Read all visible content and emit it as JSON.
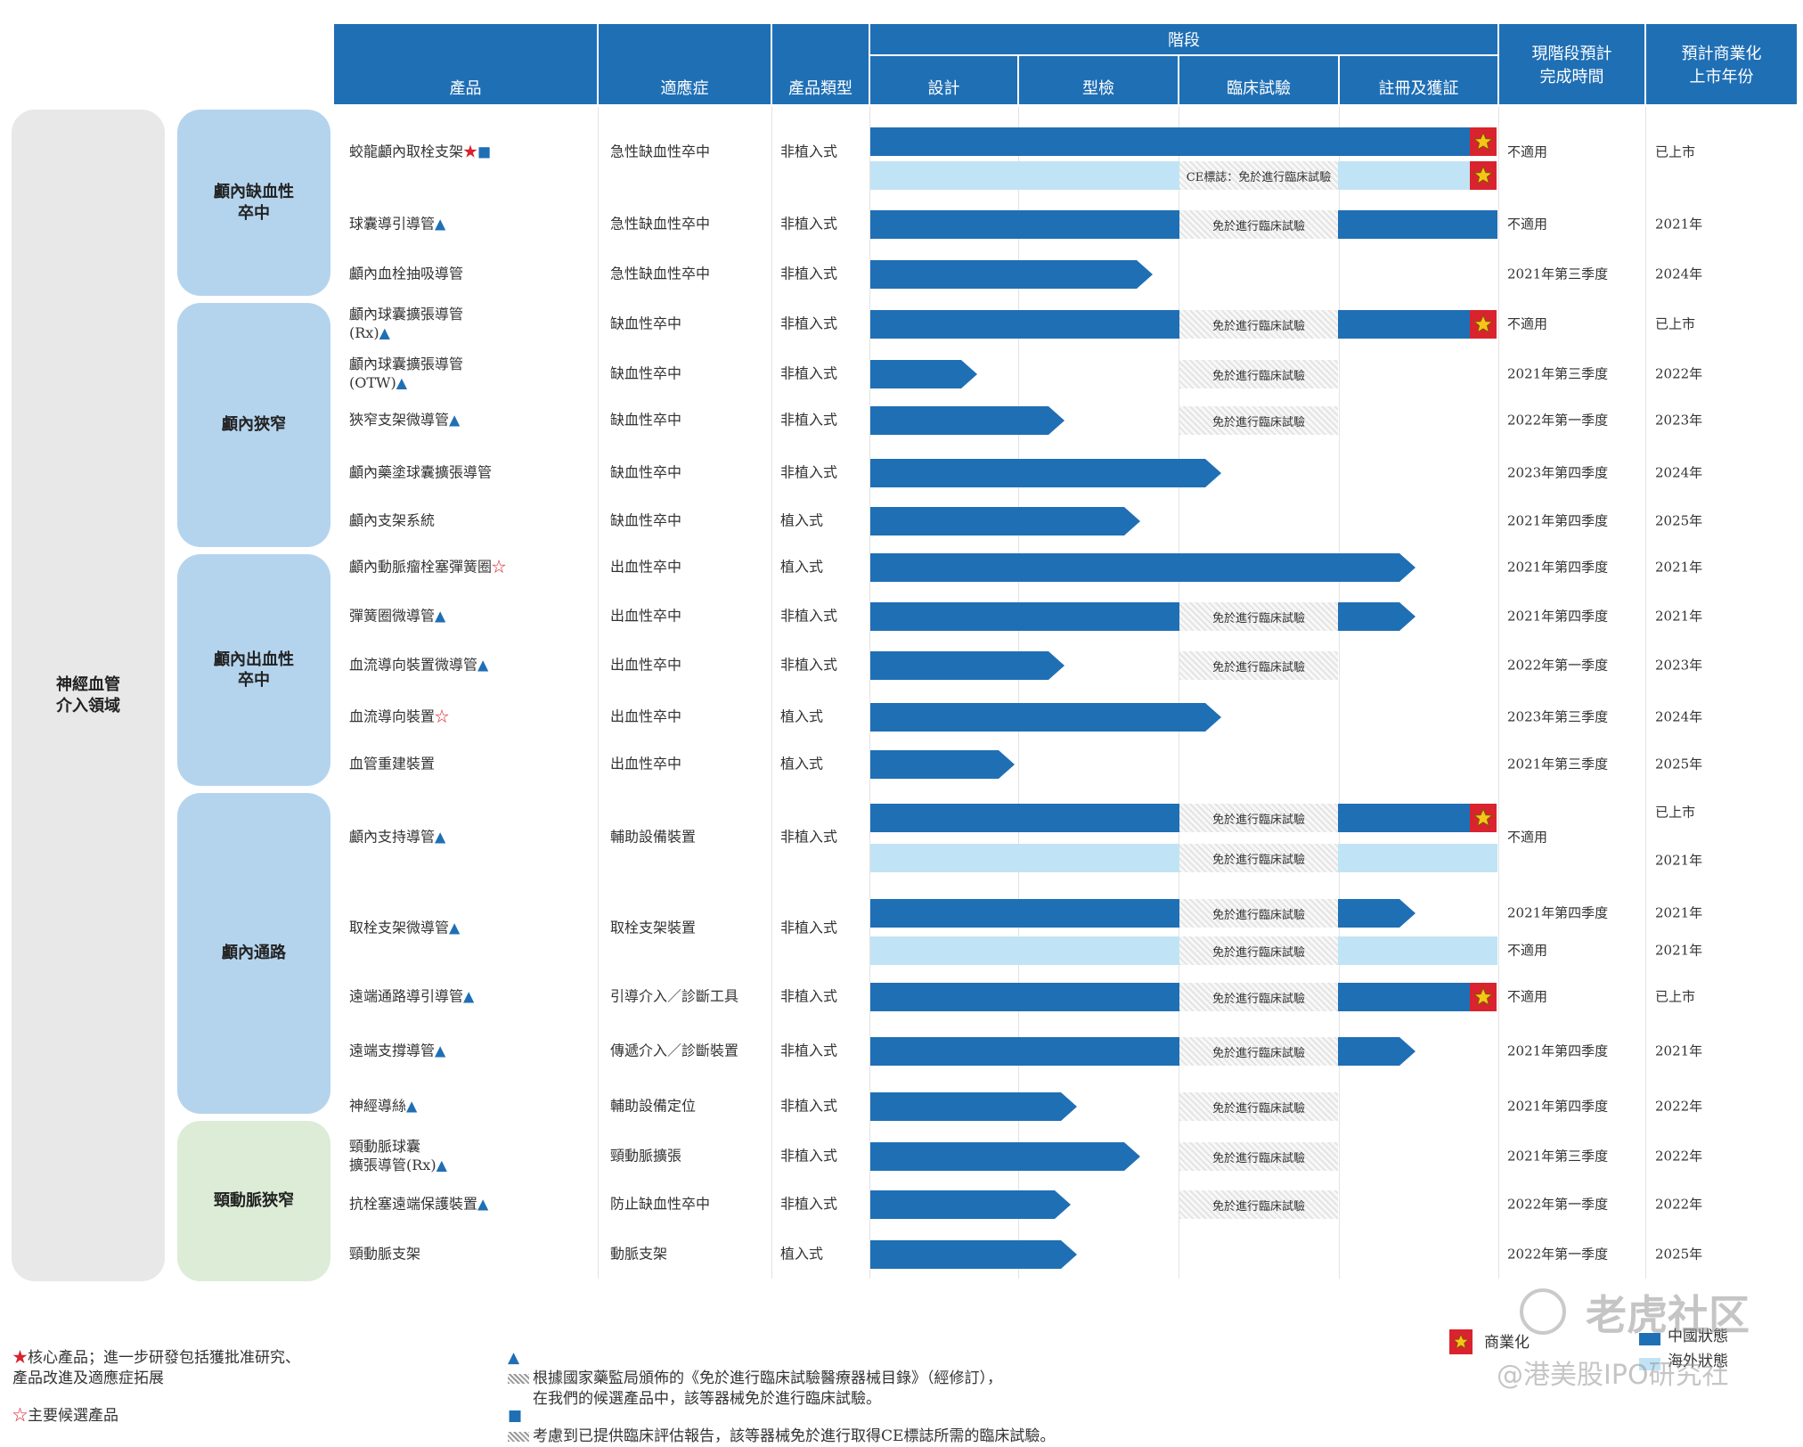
{
  "headers": {
    "product": "產品",
    "indication": "適應症",
    "type": "產品類型",
    "stage": "階段",
    "stages": [
      "設計",
      "型檢",
      "臨床試驗",
      "註冊及獲証"
    ],
    "completion": "現階段預計\n完成時間",
    "launch": "預計商業化\n上市年份"
  },
  "field": "神經血管\n介入領域",
  "categories": [
    "顱內缺血性\n卒中",
    "顱內狹窄",
    "顱內出血性\n卒中",
    "顱內通路",
    "頸動脈狹窄"
  ],
  "products": [
    {
      "name": "蛟龍顱內取栓支架",
      "marks": [
        "star",
        "square"
      ],
      "indication": "急性缺血性卒中",
      "type": "非植入式"
    },
    {
      "name": "球囊導引導管",
      "marks": [
        "tri"
      ],
      "indication": "急性缺血性卒中",
      "type": "非植入式"
    },
    {
      "name": "顱內血栓抽吸導管",
      "marks": [],
      "indication": "急性缺血性卒中",
      "type": "非植入式"
    },
    {
      "name": "顱內球囊擴張導管\n(Rx)",
      "marks": [
        "tri"
      ],
      "indication": "缺血性卒中",
      "type": "非植入式"
    },
    {
      "name": "顱內球囊擴張導管\n(OTW)",
      "marks": [
        "tri"
      ],
      "indication": "缺血性卒中",
      "type": "非植入式"
    },
    {
      "name": "狹窄支架微導管",
      "marks": [
        "tri"
      ],
      "indication": "缺血性卒中",
      "type": "非植入式"
    },
    {
      "name": "顱內藥塗球囊擴張導管",
      "marks": [],
      "indication": "缺血性卒中",
      "type": "非植入式"
    },
    {
      "name": "顱內支架系統",
      "marks": [],
      "indication": "缺血性卒中",
      "type": "植入式"
    },
    {
      "name": "顱內動脈瘤栓塞彈簧圈",
      "marks": [
        "ostar"
      ],
      "indication": "出血性卒中",
      "type": "植入式"
    },
    {
      "name": "彈簧圈微導管",
      "marks": [
        "tri"
      ],
      "indication": "出血性卒中",
      "type": "非植入式"
    },
    {
      "name": "血流導向裝置微導管",
      "marks": [
        "tri"
      ],
      "indication": "出血性卒中",
      "type": "非植入式"
    },
    {
      "name": "血流導向裝置",
      "marks": [
        "ostar"
      ],
      "indication": "出血性卒中",
      "type": "植入式"
    },
    {
      "name": "血管重建裝置",
      "marks": [],
      "indication": "出血性卒中",
      "type": "植入式"
    },
    {
      "name": "顱內支持導管",
      "marks": [
        "tri"
      ],
      "indication": "輔助設備裝置",
      "type": "非植入式"
    },
    {
      "name": "取栓支架微導管",
      "marks": [
        "tri"
      ],
      "indication": "取栓支架裝置",
      "type": "非植入式"
    },
    {
      "name": "遠端通路導引導管",
      "marks": [
        "tri"
      ],
      "indication": "引導介入／診斷工具",
      "type": "非植入式"
    },
    {
      "name": "遠端支撐導管",
      "marks": [
        "tri"
      ],
      "indication": "傳遞介入／診斷裝置",
      "type": "非植入式"
    },
    {
      "name": "神經導絲",
      "marks": [
        "tri"
      ],
      "indication": "輔助設備定位",
      "type": "非植入式"
    },
    {
      "name": "頸動脈球囊\n擴張導管(Rx)",
      "marks": [
        "tri"
      ],
      "indication": "頸動脈擴張",
      "type": "非植入式"
    },
    {
      "name": "抗栓塞遠端保護裝置",
      "marks": [
        "tri"
      ],
      "indication": "防止缺血性卒中",
      "type": "非植入式"
    },
    {
      "name": "頸動脈支架",
      "marks": [],
      "indication": "動脈支架",
      "type": "植入式"
    }
  ],
  "exempt_label": "免於進行臨床試驗",
  "ce_label": "CE標誌：免於進行臨床試驗",
  "bars": [
    {
      "y": 159,
      "color": "dark",
      "progress": 1.0,
      "arrow": false,
      "hatch": false,
      "badge": true
    },
    {
      "y": 197,
      "color": "light",
      "progress": 1.0,
      "arrow": false,
      "hatch": true,
      "hatch_text": "ce",
      "badge": true
    },
    {
      "y": 252,
      "color": "dark",
      "progress": 1.0,
      "arrow": false,
      "hatch": true,
      "badge": false
    },
    {
      "y": 308,
      "color": "dark",
      "progress": 0.45,
      "arrow": true,
      "hatch": false,
      "badge": false
    },
    {
      "y": 364,
      "color": "dark",
      "progress": 1.0,
      "arrow": false,
      "hatch": true,
      "badge": true
    },
    {
      "y": 420,
      "color": "dark",
      "progress": 0.17,
      "arrow": true,
      "hatch": true,
      "badge": false
    },
    {
      "y": 472,
      "color": "dark",
      "progress": 0.31,
      "arrow": true,
      "hatch": true,
      "badge": false
    },
    {
      "y": 531,
      "color": "dark",
      "progress": 0.56,
      "arrow": true,
      "hatch": false,
      "badge": false
    },
    {
      "y": 585,
      "color": "dark",
      "progress": 0.43,
      "arrow": true,
      "hatch": false,
      "badge": false
    },
    {
      "y": 637,
      "color": "dark",
      "progress": 0.87,
      "arrow": true,
      "hatch": false,
      "badge": false
    },
    {
      "y": 692,
      "color": "dark",
      "progress": 0.87,
      "arrow": true,
      "hatch": true,
      "badge": false
    },
    {
      "y": 747,
      "color": "dark",
      "progress": 0.31,
      "arrow": true,
      "hatch": true,
      "badge": false
    },
    {
      "y": 805,
      "color": "dark",
      "progress": 0.56,
      "arrow": true,
      "hatch": false,
      "badge": false
    },
    {
      "y": 858,
      "color": "dark",
      "progress": 0.23,
      "arrow": true,
      "hatch": false,
      "badge": false
    },
    {
      "y": 918,
      "color": "dark",
      "progress": 1.0,
      "arrow": false,
      "hatch": true,
      "badge": true
    },
    {
      "y": 963,
      "color": "light",
      "progress": 1.0,
      "arrow": false,
      "hatch": true,
      "badge": false
    },
    {
      "y": 1025,
      "color": "dark",
      "progress": 0.87,
      "arrow": true,
      "hatch": true,
      "badge": false
    },
    {
      "y": 1067,
      "color": "light",
      "progress": 1.0,
      "arrow": false,
      "hatch": true,
      "badge": false
    },
    {
      "y": 1119,
      "color": "dark",
      "progress": 1.0,
      "arrow": false,
      "hatch": true,
      "badge": true
    },
    {
      "y": 1180,
      "color": "dark",
      "progress": 0.87,
      "arrow": true,
      "hatch": true,
      "badge": false
    },
    {
      "y": 1242,
      "color": "dark",
      "progress": 0.33,
      "arrow": true,
      "hatch": true,
      "badge": false
    },
    {
      "y": 1298,
      "color": "dark",
      "progress": 0.43,
      "arrow": true,
      "hatch": true,
      "badge": false
    },
    {
      "y": 1352,
      "color": "dark",
      "progress": 0.32,
      "arrow": true,
      "hatch": true,
      "badge": false
    },
    {
      "y": 1408,
      "color": "dark",
      "progress": 0.33,
      "arrow": true,
      "hatch": false,
      "badge": false
    }
  ],
  "completion": [
    "不適用",
    "不適用",
    "2021年第三季度",
    "不適用",
    "2021年第三季度",
    "2022年第一季度",
    "2023年第四季度",
    "2021年第四季度",
    "2021年第四季度",
    "2021年第四季度",
    "2022年第一季度",
    "2023年第三季度",
    "2021年第三季度",
    "不適用",
    "2021年第四季度",
    "不適用",
    "不適用",
    "2021年第四季度",
    "2021年第四季度",
    "2021年第三季度",
    "2022年第一季度",
    "2022年第一季度"
  ],
  "launch": [
    "已上市",
    "2021年",
    "2024年",
    "已上市",
    "2022年",
    "2023年",
    "2024年",
    "2025年",
    "2021年",
    "2021年",
    "2023年",
    "2024年",
    "2025年",
    "已上市",
    "2021年",
    "2021年",
    "2021年",
    "已上市",
    "2021年",
    "2022年",
    "2022年",
    "2022年",
    "2025年"
  ],
  "legend": {
    "core": "核心產品；進一步研發包括獲批准研究、\n產品改進及適應症拓展",
    "candidate": "主要候選產品",
    "exempt_note": "根據國家藥監局頒佈的《免於進行臨床試驗醫療器械目錄》（經修訂），\n在我們的候選產品中，該等器械免於進行臨床試驗。",
    "ce_note": "考慮到已提供臨床評估報告，該等器械免於進行取得CE標誌所需的臨床試驗。",
    "commercial": "商業化",
    "china": "中國狀態",
    "overseas": "海外狀態"
  },
  "watermark": {
    "brand": "老虎社区",
    "handle": "@港美股IPO研究社"
  },
  "colors": {
    "header": "#1f6fb5",
    "dark_bar": "#1f6fb5",
    "light_bar": "#c0e4f5",
    "category_blue": "#b4d4ee",
    "category_green": "#dcecd7",
    "field_gray": "#e8e8e8",
    "red": "#d9232e"
  }
}
